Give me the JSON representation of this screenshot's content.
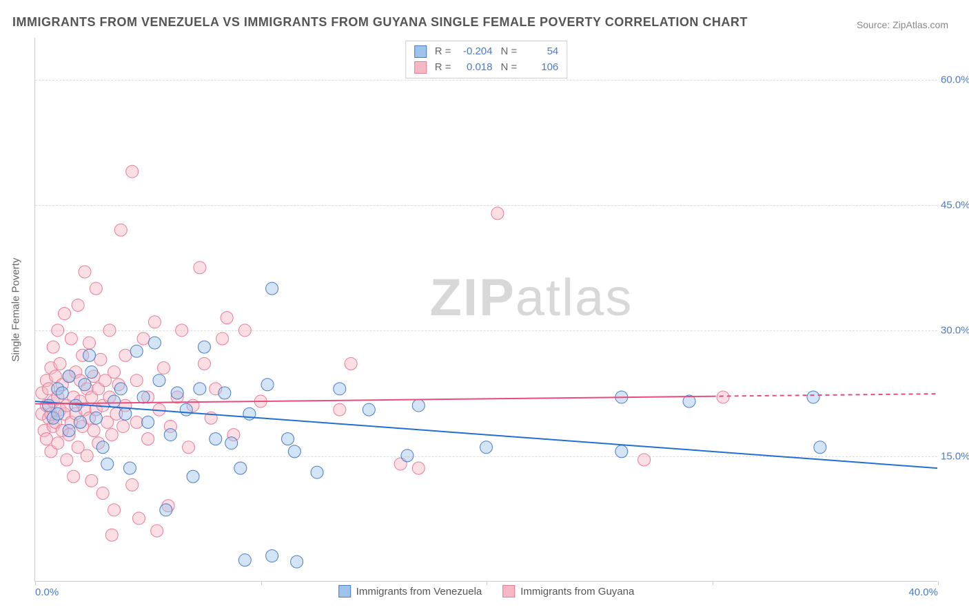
{
  "title": "IMMIGRANTS FROM VENEZUELA VS IMMIGRANTS FROM GUYANA SINGLE FEMALE POVERTY CORRELATION CHART",
  "source_label": "Source: ZipAtlas.com",
  "watermark": {
    "bold": "ZIP",
    "rest": "atlas"
  },
  "y_axis_title": "Single Female Poverty",
  "chart": {
    "type": "scatter",
    "background_color": "#ffffff",
    "grid_color": "#dddddd",
    "axis_color": "#cccccc",
    "xlim": [
      0,
      40
    ],
    "ylim": [
      0,
      65
    ],
    "x_ticks": [
      0,
      10,
      20,
      30,
      40
    ],
    "x_tick_labels": [
      "0.0%",
      "",
      "",
      "",
      "40.0%"
    ],
    "y_ticks": [
      15,
      30,
      45,
      60
    ],
    "y_tick_labels": [
      "15.0%",
      "30.0%",
      "45.0%",
      "60.0%"
    ],
    "tick_label_color": "#4a7ac7",
    "tick_label_fontsize": 15,
    "marker_radius": 9,
    "marker_opacity": 0.45,
    "line_width": 2
  },
  "series": [
    {
      "name": "Immigrants from Venezuela",
      "color_fill": "#9ec4ec",
      "color_stroke": "#4a7ac7",
      "line_color": "#1f6fd4",
      "R": "-0.204",
      "N": "54",
      "regression": {
        "x1": 0,
        "y1": 21.5,
        "x2": 40,
        "y2": 13.5,
        "dash_from_x": null
      },
      "points": [
        [
          0.6,
          21
        ],
        [
          0.8,
          19.5
        ],
        [
          1.0,
          23
        ],
        [
          1.0,
          20
        ],
        [
          1.2,
          22.5
        ],
        [
          1.5,
          18
        ],
        [
          1.5,
          24.5
        ],
        [
          1.8,
          21
        ],
        [
          2.0,
          19
        ],
        [
          2.2,
          23.5
        ],
        [
          2.4,
          27
        ],
        [
          2.5,
          25
        ],
        [
          2.7,
          19.5
        ],
        [
          3.0,
          16
        ],
        [
          3.2,
          14
        ],
        [
          3.5,
          21.5
        ],
        [
          3.8,
          23
        ],
        [
          4.0,
          20
        ],
        [
          4.2,
          13.5
        ],
        [
          4.5,
          27.5
        ],
        [
          4.8,
          22
        ],
        [
          5.0,
          19
        ],
        [
          5.3,
          28.5
        ],
        [
          5.5,
          24
        ],
        [
          5.8,
          8.5
        ],
        [
          6.0,
          17.5
        ],
        [
          6.3,
          22.5
        ],
        [
          6.7,
          20.5
        ],
        [
          7.0,
          12.5
        ],
        [
          7.3,
          23
        ],
        [
          7.5,
          28
        ],
        [
          8.0,
          17
        ],
        [
          8.4,
          22.5
        ],
        [
          8.7,
          16.5
        ],
        [
          9.1,
          13.5
        ],
        [
          9.3,
          2.5
        ],
        [
          9.5,
          20
        ],
        [
          10.3,
          23.5
        ],
        [
          10.5,
          35
        ],
        [
          10.5,
          3
        ],
        [
          11.2,
          17
        ],
        [
          11.5,
          15.5
        ],
        [
          12.5,
          13
        ],
        [
          13.5,
          23
        ],
        [
          14.8,
          20.5
        ],
        [
          16.5,
          15
        ],
        [
          17.0,
          21
        ],
        [
          20.0,
          16
        ],
        [
          26.0,
          22
        ],
        [
          26.0,
          15.5
        ],
        [
          34.5,
          22
        ],
        [
          34.8,
          16
        ],
        [
          29.0,
          21.5
        ],
        [
          11.6,
          2.3
        ]
      ]
    },
    {
      "name": "Immigrants from Guyana",
      "color_fill": "#f6b8c5",
      "color_stroke": "#e87b94",
      "line_color": "#e94b7a",
      "R": "0.018",
      "N": "106",
      "regression": {
        "x1": 0,
        "y1": 21.2,
        "x2": 40,
        "y2": 22.4,
        "dash_from_x": 30
      },
      "points": [
        [
          0.3,
          20
        ],
        [
          0.3,
          22.5
        ],
        [
          0.4,
          18
        ],
        [
          0.5,
          24
        ],
        [
          0.5,
          21
        ],
        [
          0.5,
          17
        ],
        [
          0.6,
          19.5
        ],
        [
          0.6,
          23
        ],
        [
          0.7,
          20
        ],
        [
          0.7,
          25.5
        ],
        [
          0.7,
          15.5
        ],
        [
          0.8,
          28
        ],
        [
          0.8,
          21.5
        ],
        [
          0.8,
          18.5
        ],
        [
          0.9,
          24.5
        ],
        [
          0.9,
          19
        ],
        [
          1.0,
          30
        ],
        [
          1.0,
          22
        ],
        [
          1.0,
          16.5
        ],
        [
          1.1,
          20.5
        ],
        [
          1.1,
          26
        ],
        [
          1.2,
          18
        ],
        [
          1.2,
          23.5
        ],
        [
          1.3,
          32
        ],
        [
          1.3,
          20
        ],
        [
          1.4,
          14.5
        ],
        [
          1.4,
          21
        ],
        [
          1.5,
          24.5
        ],
        [
          1.5,
          17.5
        ],
        [
          1.6,
          29
        ],
        [
          1.6,
          19
        ],
        [
          1.7,
          22
        ],
        [
          1.7,
          12.5
        ],
        [
          1.8,
          25
        ],
        [
          1.8,
          20
        ],
        [
          1.9,
          33
        ],
        [
          1.9,
          16
        ],
        [
          2.0,
          21.5
        ],
        [
          2.0,
          24
        ],
        [
          2.1,
          18.5
        ],
        [
          2.1,
          27
        ],
        [
          2.2,
          20.5
        ],
        [
          2.2,
          37
        ],
        [
          2.3,
          23
        ],
        [
          2.3,
          15
        ],
        [
          2.4,
          19.5
        ],
        [
          2.4,
          28.5
        ],
        [
          2.5,
          22
        ],
        [
          2.5,
          12
        ],
        [
          2.6,
          24.5
        ],
        [
          2.6,
          18
        ],
        [
          2.7,
          35
        ],
        [
          2.7,
          20.5
        ],
        [
          2.8,
          23
        ],
        [
          2.8,
          16.5
        ],
        [
          2.9,
          26.5
        ],
        [
          3.0,
          21
        ],
        [
          3.0,
          10.5
        ],
        [
          3.1,
          24
        ],
        [
          3.2,
          19
        ],
        [
          3.3,
          30
        ],
        [
          3.3,
          22
        ],
        [
          3.4,
          17.5
        ],
        [
          3.4,
          5.5
        ],
        [
          3.5,
          25
        ],
        [
          3.5,
          8.5
        ],
        [
          3.6,
          20
        ],
        [
          3.7,
          23.5
        ],
        [
          3.8,
          42
        ],
        [
          3.9,
          18.5
        ],
        [
          4.0,
          27
        ],
        [
          4.0,
          21
        ],
        [
          4.3,
          49
        ],
        [
          4.3,
          11.5
        ],
        [
          4.5,
          24
        ],
        [
          4.5,
          19
        ],
        [
          4.6,
          7.5
        ],
        [
          4.8,
          29
        ],
        [
          5.0,
          22
        ],
        [
          5.0,
          17
        ],
        [
          5.3,
          31
        ],
        [
          5.4,
          6
        ],
        [
          5.5,
          20.5
        ],
        [
          5.7,
          25.5
        ],
        [
          5.9,
          9
        ],
        [
          6.0,
          18.5
        ],
        [
          6.3,
          22
        ],
        [
          6.5,
          30
        ],
        [
          6.8,
          16
        ],
        [
          7.0,
          21
        ],
        [
          7.3,
          37.5
        ],
        [
          7.5,
          26
        ],
        [
          7.8,
          19.5
        ],
        [
          8.0,
          23
        ],
        [
          8.3,
          29
        ],
        [
          8.5,
          31.5
        ],
        [
          8.8,
          17.5
        ],
        [
          9.3,
          30
        ],
        [
          10.0,
          21.5
        ],
        [
          13.5,
          20.5
        ],
        [
          14.0,
          26
        ],
        [
          16.2,
          14
        ],
        [
          17.0,
          13.5
        ],
        [
          20.5,
          44
        ],
        [
          27.0,
          14.5
        ],
        [
          30.5,
          22
        ]
      ]
    }
  ],
  "bottom_legend": [
    {
      "label": "Immigrants from Venezuela",
      "fill": "#9ec4ec",
      "stroke": "#4a7ac7"
    },
    {
      "label": "Immigrants from Guyana",
      "fill": "#f6b8c5",
      "stroke": "#e87b94"
    }
  ]
}
